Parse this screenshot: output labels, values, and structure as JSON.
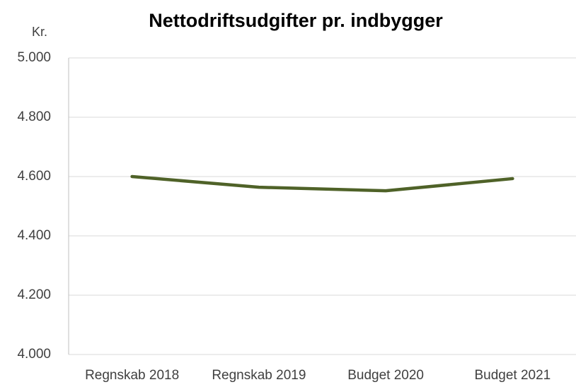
{
  "chart_data": {
    "type": "line",
    "title": "Nettodriftsudgifter pr. indbygger",
    "y_label": "Kr.",
    "categories": [
      "Regnskab 2018",
      "Regnskab 2019",
      "Budget 2020",
      "Budget 2021"
    ],
    "series": [
      {
        "name": "Nettodriftsudgifter pr. indbygger",
        "color": "#4f6228",
        "values": [
          4600,
          4564,
          4552,
          4593
        ]
      }
    ],
    "ylim": [
      4000,
      5000
    ],
    "yticks": [
      {
        "value": 4000,
        "label": "4.000"
      },
      {
        "value": 4200,
        "label": "4.200"
      },
      {
        "value": 4400,
        "label": "4.400"
      },
      {
        "value": 4600,
        "label": "4.600"
      },
      {
        "value": 4800,
        "label": "4.800"
      },
      {
        "value": 5000,
        "label": "5.000"
      }
    ],
    "grid": true,
    "legend": false
  }
}
